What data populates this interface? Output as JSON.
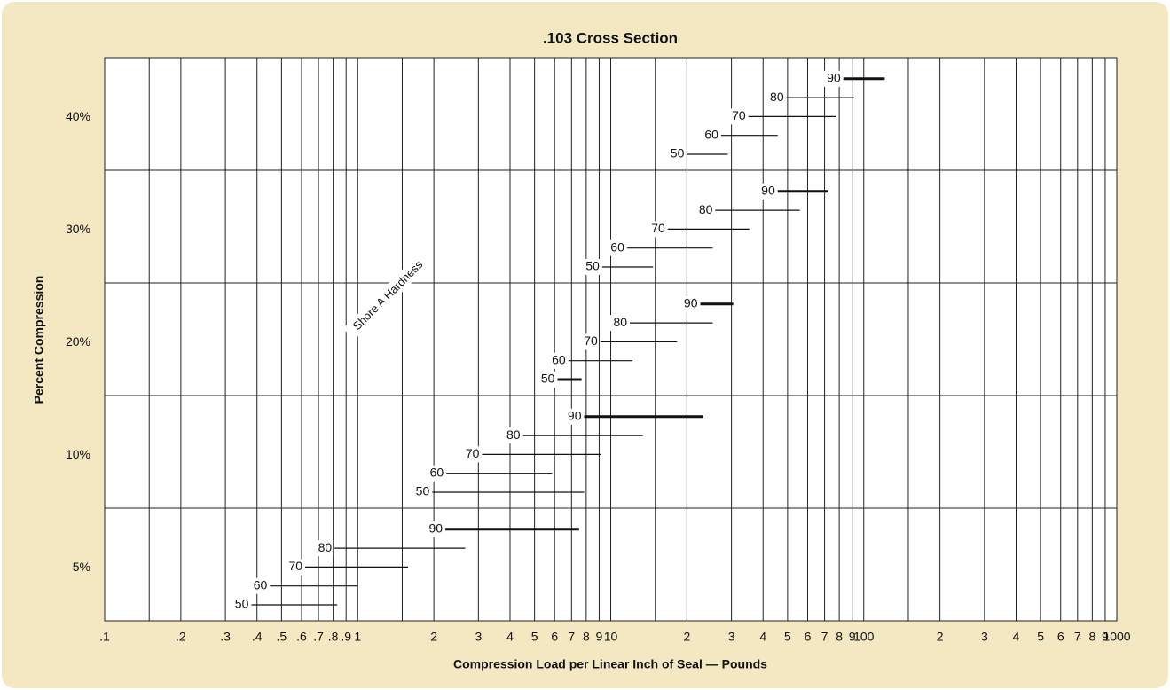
{
  "chart_data": {
    "type": "range-bar",
    "title": ".103 Cross Section",
    "x_label": "Compression Load per Linear Inch of Seal — Pounds",
    "y_label": "Percent Compression",
    "annotation": "Shore A Hardness",
    "xscale": "log",
    "xlim": [
      0.1,
      1000
    ],
    "xticks": [
      {
        "value": 0.1,
        "label": ".1"
      },
      {
        "value": 0.2,
        "label": ".2"
      },
      {
        "value": 0.3,
        "label": ".3"
      },
      {
        "value": 0.4,
        "label": ".4"
      },
      {
        "value": 0.5,
        "label": ".5"
      },
      {
        "value": 0.6,
        "label": ".6"
      },
      {
        "value": 0.7,
        "label": ".7"
      },
      {
        "value": 0.8,
        "label": ".8"
      },
      {
        "value": 0.9,
        "label": ".9"
      },
      1,
      2,
      3,
      4,
      5,
      6,
      7,
      8,
      9,
      10,
      {
        "value": 20,
        "label": "2"
      },
      {
        "value": 30,
        "label": "3"
      },
      {
        "value": 40,
        "label": "4"
      },
      {
        "value": 50,
        "label": "5"
      },
      {
        "value": 60,
        "label": "6"
      },
      {
        "value": 70,
        "label": "7"
      },
      {
        "value": 80,
        "label": "8"
      },
      {
        "value": 90,
        "label": "9"
      },
      100,
      {
        "value": 200,
        "label": "2"
      },
      {
        "value": 300,
        "label": "3"
      },
      {
        "value": 400,
        "label": "4"
      },
      {
        "value": 500,
        "label": "5"
      },
      {
        "value": 600,
        "label": "6"
      },
      {
        "value": 700,
        "label": "7"
      },
      {
        "value": 800,
        "label": "8"
      },
      {
        "value": 900,
        "label": "9"
      },
      1000
    ],
    "xminor_grid": [
      0.15,
      1.5,
      15,
      150
    ],
    "color": "#111111",
    "bands": [
      {
        "label": "5%",
        "bars": [
          {
            "label": "50",
            "values": [
              0.38,
              0.83
            ]
          },
          {
            "label": "60",
            "values": [
              0.45,
              1.0
            ]
          },
          {
            "label": "70",
            "values": [
              0.62,
              1.58
            ]
          },
          {
            "label": "80",
            "values": [
              0.81,
              2.66
            ]
          },
          {
            "label": "90",
            "values": [
              2.22,
              7.5
            ],
            "bold": true
          }
        ]
      },
      {
        "label": "10%",
        "bars": [
          {
            "label": "50",
            "values": [
              1.97,
              7.85
            ]
          },
          {
            "label": "60",
            "values": [
              2.24,
              5.87
            ]
          },
          {
            "label": "70",
            "values": [
              3.1,
              9.15
            ]
          },
          {
            "label": "80",
            "values": [
              4.5,
              13.4
            ]
          },
          {
            "label": "90",
            "values": [
              7.85,
              23.2
            ],
            "bold": true
          }
        ]
      },
      {
        "label": "20%",
        "bars": [
          {
            "label": "50",
            "values": [
              6.16,
              7.67
            ],
            "bold": true
          },
          {
            "label": "60",
            "values": [
              6.8,
              12.2
            ]
          },
          {
            "label": "70",
            "values": [
              9.1,
              18.3
            ]
          },
          {
            "label": "80",
            "values": [
              11.9,
              25.3
            ]
          },
          {
            "label": "90",
            "values": [
              22.6,
              30.5
            ],
            "bold": true
          }
        ]
      },
      {
        "label": "30%",
        "bars": [
          {
            "label": "50",
            "values": [
              9.25,
              14.7
            ]
          },
          {
            "label": "60",
            "values": [
              11.6,
              25.3
            ]
          },
          {
            "label": "70",
            "values": [
              16.8,
              35.3
            ]
          },
          {
            "label": "80",
            "values": [
              25.9,
              55.9
            ]
          },
          {
            "label": "90",
            "values": [
              45.7,
              72.4
            ],
            "bold": true
          }
        ]
      },
      {
        "label": "40%",
        "bars": [
          {
            "label": "50",
            "values": [
              20,
              29
            ]
          },
          {
            "label": "60",
            "values": [
              27.3,
              45.7
            ]
          },
          {
            "label": "70",
            "values": [
              35,
              77.8
            ]
          },
          {
            "label": "80",
            "values": [
              49.5,
              91.5
            ]
          },
          {
            "label": "90",
            "values": [
              83,
              121
            ],
            "bold": true
          }
        ]
      }
    ]
  }
}
